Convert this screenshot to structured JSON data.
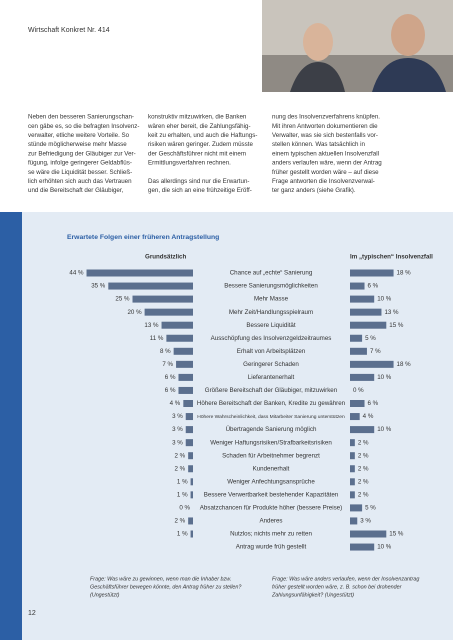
{
  "header": {
    "title": "Wirtschaft Konkret Nr. 414"
  },
  "body": {
    "columns": [
      [
        [
          "Neben den besseren Sanierungschan-",
          "cen gäbe es, so die befragten Insolvenz-",
          "verwalter, etliche weitere Vorteile. So",
          "stünde möglicherweise mehr Masse",
          "zur Befriedigung der Gläubiger zur Ver-",
          "fügung, infolge geringerer Geldabflüs-",
          "se wäre die Liquidität besser. Schließ-",
          "lich erhöhten sich auch das Vertrauen",
          "und die Bereitschaft der Gläubiger,"
        ]
      ],
      [
        [
          "konstruktiv mitzuwirken, die Banken",
          "wären eher bereit, die Zahlungsfähig-",
          "keit zu erhalten, und auch die Haftungs-",
          "risiken wären geringer. Zudem müsste",
          "der Geschäftsführer nicht mit einem",
          "Ermittlungsverfahren rechnen."
        ],
        [
          "Das allerdings sind nur die Erwartun-",
          "gen, die sich an eine frühzeitige Eröff-"
        ]
      ],
      [
        [
          "nung des Insolvenzverfahrens knüpfen.",
          "Mit ihren Antworten dokumentieren die",
          "Verwalter, was sie sich bestenfalls vor-",
          "stellen können. Was tatsächlich in",
          "einem typischen aktuellen Insolvenzfall",
          "anders verlaufen wäre, wenn der Antrag",
          "früher gestellt worden wäre – auf diese",
          "Frage antworten die Insolvenzverwal-",
          "ter ganz anders (siehe Grafik)."
        ]
      ]
    ]
  },
  "chart_data": {
    "type": "bar",
    "title": "Erwartete Folgen einer früheren Antragstellung",
    "categories": [
      "Chance auf „echte“ Sanierung",
      "Bessere Sanierungsmöglichkeiten",
      "Mehr Masse",
      "Mehr Zeit/Handlungsspielraum",
      "Bessere Liquidität",
      "Ausschöpfung des Insolvenzgeldzeitraumes",
      "Erhalt von Arbeitsplätzen",
      "Geringerer Schaden",
      "Lieferantenerhalt",
      "Größere Bereitschaft der Gläubiger, mitzuwirken",
      "Höhere Bereitschaft der Banken, Kredite zu gewähren",
      "Höhere Wahrscheinlichkeit, dass Mitarbeiter Sanierung unterstützen",
      "Übertragende Sanierung möglich",
      "Weniger Haftungsrisiken/Strafbarkeitsrisiken",
      "Schaden für Arbeitnehmer begrenzt",
      "Kundenerhalt",
      "Weniger Anfechtungsansprüche",
      "Bessere Verwertbarkeit bestehender Kapazitäten",
      "Absatzchancen für Produkte höher (bessere Preise)",
      "Anderes",
      "Nutzlos; nichts mehr zu retten",
      "Antrag wurde früh gestellt"
    ],
    "series": [
      {
        "name": "Grundsätzlich",
        "color": "#5b6f8e",
        "values": [
          44,
          35,
          25,
          20,
          13,
          11,
          8,
          7,
          6,
          6,
          4,
          3,
          3,
          3,
          2,
          2,
          1,
          1,
          0,
          2,
          1,
          null
        ],
        "value_labels": [
          "44 %",
          "35 %",
          "25 %",
          "20 %",
          "13 %",
          "11 %",
          "8 %",
          "7 %",
          "6 %",
          "6 %",
          "4 %",
          "3 %",
          "3 %",
          "3 %",
          "2 %",
          "2 %",
          "1 %",
          "1 %",
          "0 %",
          "2 %",
          "1 %",
          null
        ]
      },
      {
        "name": "Im „typischen“ Insolvenzfall",
        "color": "#5b6f8e",
        "values": [
          18,
          6,
          10,
          13,
          15,
          5,
          7,
          18,
          10,
          0,
          6,
          4,
          10,
          2,
          2,
          2,
          2,
          2,
          5,
          3,
          15,
          10
        ],
        "value_labels": [
          "18 %",
          "6 %",
          "10 %",
          "13 %",
          "15 %",
          "5 %",
          "7 %",
          "18 %",
          "10 %",
          "0 %",
          "6 %",
          "4 %",
          "10 %",
          "2 %",
          "2 %",
          "2 %",
          "2 %",
          "2 %",
          "5 %",
          "3 %",
          "15 %",
          "10 %"
        ]
      }
    ]
  },
  "footnotes": [
    [
      "Frage: Was wäre zu gewinnen, wenn man die Inhaber bzw.",
      "Geschäftsführer bewegen könnte, den Antrag früher zu stellen?",
      "(Ungestützt)"
    ],
    [
      "Frage: Was wäre anders verlaufen, wenn der Insolvenzantrag",
      "früher gestellt worden wäre, z. B. schon bei drohender",
      "Zahlungsunfähigkeit? (Ungestützt)"
    ]
  ],
  "page_number": "12"
}
